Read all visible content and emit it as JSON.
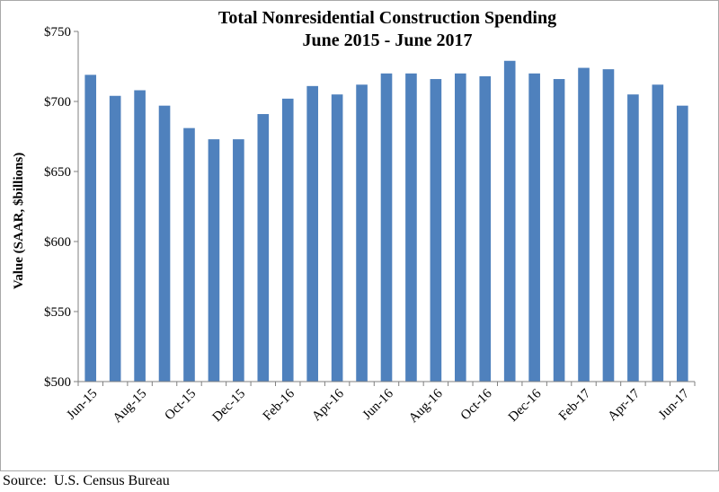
{
  "chart_data": {
    "type": "bar",
    "title_line1": "Total Nonresidential Construction Spending",
    "title_line2": "June 2015 - June 2017",
    "ylabel": "Value (SAAR, $billions)",
    "xlabel": "",
    "ylim": [
      500,
      750
    ],
    "yticks": [
      500,
      550,
      600,
      650,
      700,
      750
    ],
    "ytick_labels": [
      "$500",
      "$550",
      "$600",
      "$650",
      "$700",
      "$750"
    ],
    "grid": false,
    "legend": "none",
    "bar_color": "#4f81bd",
    "categories": [
      "Jun-15",
      "Jul-15",
      "Aug-15",
      "Sep-15",
      "Oct-15",
      "Nov-15",
      "Dec-15",
      "Jan-16",
      "Feb-16",
      "Mar-16",
      "Apr-16",
      "May-16",
      "Jun-16",
      "Jul-16",
      "Aug-16",
      "Sep-16",
      "Oct-16",
      "Nov-16",
      "Dec-16",
      "Jan-17",
      "Feb-17",
      "Mar-17",
      "Apr-17",
      "May-17",
      "Jun-17"
    ],
    "shown_xtick_labels": [
      "Jun-15",
      "",
      "Aug-15",
      "",
      "Oct-15",
      "",
      "Dec-15",
      "",
      "Feb-16",
      "",
      "Apr-16",
      "",
      "Jun-16",
      "",
      "Aug-16",
      "",
      "Oct-16",
      "",
      "Dec-16",
      "",
      "Feb-17",
      "",
      "Apr-17",
      "",
      "Jun-17"
    ],
    "values": [
      719,
      704,
      708,
      697,
      681,
      673,
      673,
      691,
      702,
      711,
      705,
      712,
      720,
      720,
      716,
      720,
      718,
      729,
      720,
      716,
      724,
      723,
      705,
      712,
      697
    ]
  },
  "source_text": "Source:  U.S. Census Bureau"
}
